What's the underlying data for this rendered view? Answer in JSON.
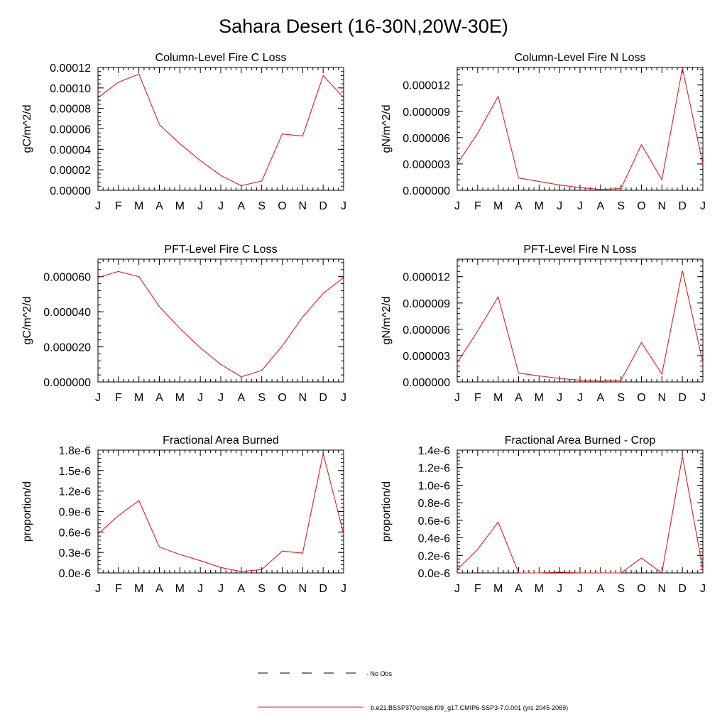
{
  "title": "Sahara Desert (16-30N,20W-30E)",
  "colors": {
    "series": "#e31a1c",
    "axis": "#000000",
    "obs": "#000000"
  },
  "legend": {
    "obs_label": "No Obs",
    "model_label": "b.e21.BSSP370cmip6.f09_g17.CMIP6-SSP3-7.0.001 (yrs 2045-2069)"
  },
  "chart_data": [
    {
      "type": "line",
      "title": "Column-Level Fire C Loss",
      "ylabel": "gC/m^2/d",
      "categories": [
        "J",
        "F",
        "M",
        "A",
        "M",
        "J",
        "J",
        "A",
        "S",
        "O",
        "N",
        "D",
        "J"
      ],
      "ylim": [
        0,
        0.00012
      ],
      "yticks": [
        0,
        2e-05,
        4e-05,
        6e-05,
        8e-05,
        0.0001,
        0.00012
      ],
      "ytick_labels": [
        "0.00000",
        "0.00002",
        "0.00004",
        "0.00006",
        "0.00008",
        "0.00010",
        "0.00012"
      ],
      "series": [
        {
          "values": [
            9.05e-05,
            0.0001055,
            0.0001135,
            6.4e-05,
            4.55e-05,
            2.9e-05,
            1.45e-05,
            4.5e-06,
            9e-06,
            5.5e-05,
            5.3e-05,
            0.000112,
            9.05e-05
          ]
        }
      ]
    },
    {
      "type": "line",
      "title": "Column-Level Fire N Loss",
      "ylabel": "gN/m^2/d",
      "categories": [
        "J",
        "F",
        "M",
        "A",
        "M",
        "J",
        "J",
        "A",
        "S",
        "O",
        "N",
        "D",
        "J"
      ],
      "ylim": [
        0,
        1.4e-05
      ],
      "yticks": [
        0,
        3e-06,
        6e-06,
        9e-06,
        1.2e-05
      ],
      "ytick_labels": [
        "0.000000",
        "0.000003",
        "0.000006",
        "0.000009",
        "0.000012"
      ],
      "series": [
        {
          "values": [
            3e-06,
            6.5e-06,
            1.07e-05,
            1.4e-06,
            1e-06,
            6e-07,
            3e-07,
            1e-07,
            2e-07,
            5.2e-06,
            1.2e-06,
            1.39e-05,
            3e-06
          ]
        }
      ]
    },
    {
      "type": "line",
      "title": "PFT-Level Fire C Loss",
      "ylabel": "gC/m^2/d",
      "categories": [
        "J",
        "F",
        "M",
        "A",
        "M",
        "J",
        "J",
        "A",
        "S",
        "O",
        "N",
        "D",
        "J"
      ],
      "ylim": [
        0,
        7e-05
      ],
      "yticks": [
        0,
        2e-05,
        4e-05,
        6e-05
      ],
      "ytick_labels": [
        "0.000000",
        "0.000020",
        "0.000040",
        "0.000060"
      ],
      "series": [
        {
          "values": [
            5.95e-05,
            6.3e-05,
            6e-05,
            4.3e-05,
            3.05e-05,
            1.95e-05,
            1e-05,
            3e-06,
            6.5e-06,
            2.05e-05,
            3.7e-05,
            5.05e-05,
            5.95e-05
          ]
        }
      ]
    },
    {
      "type": "line",
      "title": "PFT-Level Fire N Loss",
      "ylabel": "gN/m^2/d",
      "categories": [
        "J",
        "F",
        "M",
        "A",
        "M",
        "J",
        "J",
        "A",
        "S",
        "O",
        "N",
        "D",
        "J"
      ],
      "ylim": [
        0,
        1.4e-05
      ],
      "yticks": [
        0,
        3e-06,
        6e-06,
        9e-06,
        1.2e-05
      ],
      "ytick_labels": [
        "0.000000",
        "0.000003",
        "0.000006",
        "0.000009",
        "0.000012"
      ],
      "series": [
        {
          "values": [
            2.2e-06,
            5.8e-06,
            9.7e-06,
            1e-06,
            7e-07,
            4e-07,
            2e-07,
            1e-07,
            2e-07,
            4.5e-06,
            9e-07,
            1.27e-05,
            2.2e-06
          ]
        }
      ]
    },
    {
      "type": "line",
      "title": "Fractional Area Burned",
      "ylabel": "proportion/d",
      "categories": [
        "J",
        "F",
        "M",
        "A",
        "M",
        "J",
        "J",
        "A",
        "S",
        "O",
        "N",
        "D",
        "J"
      ],
      "ylim": [
        0,
        1.8e-06
      ],
      "yticks": [
        0,
        3e-07,
        6e-07,
        9e-07,
        1.2e-06,
        1.5e-06,
        1.8e-06
      ],
      "ytick_labels": [
        "0.0e-6",
        "0.3e-6",
        "0.6e-6",
        "0.9e-6",
        "1.2e-6",
        "1.5e-6",
        "1.8e-6"
      ],
      "series": [
        {
          "values": [
            5.7e-07,
            8.4e-07,
            1.06e-06,
            3.8e-07,
            2.7e-07,
            1.8e-07,
            8e-08,
            2e-08,
            5e-08,
            3.2e-07,
            2.9e-07,
            1.75e-06,
            5.7e-07
          ]
        }
      ]
    },
    {
      "type": "line",
      "title": "Fractional Area Burned - Crop",
      "ylabel": "proportion/d",
      "categories": [
        "J",
        "F",
        "M",
        "A",
        "M",
        "J",
        "J",
        "A",
        "S",
        "O",
        "N",
        "D",
        "J"
      ],
      "ylim": [
        0,
        1.4e-06
      ],
      "yticks": [
        0,
        2e-07,
        4e-07,
        6e-07,
        8e-07,
        1e-06,
        1.2e-06,
        1.4e-06
      ],
      "ytick_labels": [
        "0.0e-6",
        "0.2e-6",
        "0.4e-6",
        "0.6e-6",
        "0.8e-6",
        "1.0e-6",
        "1.2e-6",
        "1.4e-6"
      ],
      "series": [
        {
          "values": [
            4e-08,
            2.7e-07,
            5.8e-07,
            0.0,
            0.0,
            1e-08,
            0.0,
            0.0,
            0.0,
            1.7e-07,
            0.0,
            1.33e-06,
            4e-08
          ]
        }
      ]
    }
  ]
}
